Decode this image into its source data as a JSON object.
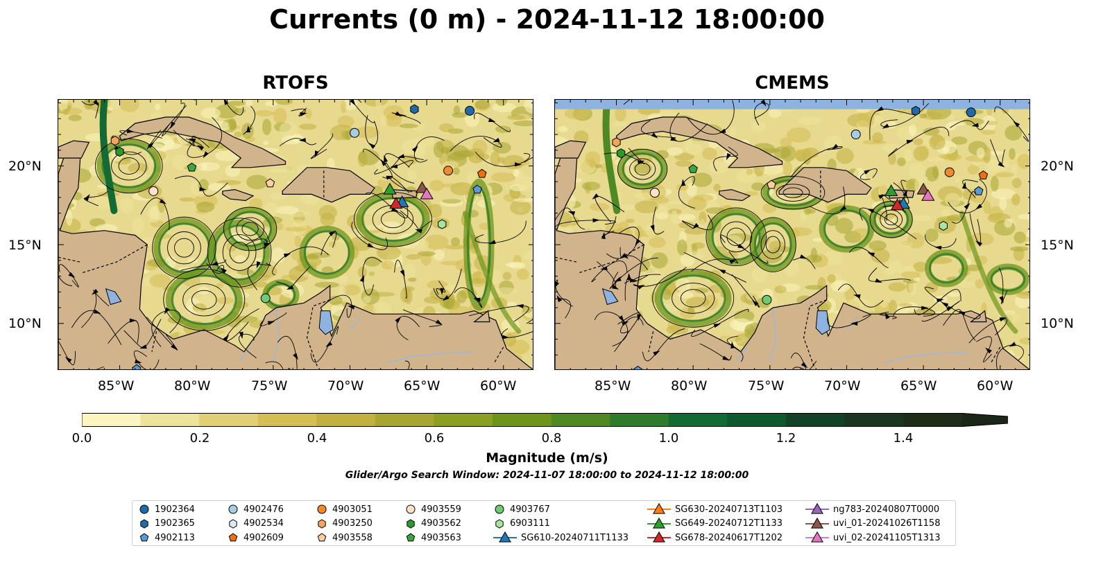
{
  "title": "Currents (0 m) - 2024-11-12 18:00:00",
  "panels": [
    {
      "title": "RTOFS"
    },
    {
      "title": "CMEMS"
    }
  ],
  "axes": {
    "x_ticks": [
      "85°W",
      "80°W",
      "75°W",
      "70°W",
      "65°W",
      "60°W"
    ],
    "y_ticks": [
      "20°N",
      "15°N",
      "10°N"
    ]
  },
  "colorbar": {
    "label": "Magnitude (m/s)",
    "ticks": [
      "0.0",
      "0.2",
      "0.4",
      "0.6",
      "0.8",
      "1.0",
      "1.2",
      "1.4"
    ],
    "colors": [
      "#fbf5c0",
      "#efe29b",
      "#e2cf75",
      "#d5be54",
      "#c2b041",
      "#a9a533",
      "#8ba023",
      "#6d951c",
      "#4f8923",
      "#2f7b2c",
      "#136b33",
      "#0c5a2d",
      "#134326",
      "#1a3620",
      "#1d2d1a",
      "#1b2618"
    ],
    "range": [
      0.0,
      1.5
    ]
  },
  "search_window": "Glider/Argo Search Window: 2024-11-07 18:00:00 to 2024-11-12 18:00:00",
  "legend": {
    "columns": [
      [
        {
          "label": "1902364",
          "marker": "circle",
          "color": "#1f6aa8"
        },
        {
          "label": "1902365",
          "marker": "hexagon",
          "color": "#1f6aa8"
        },
        {
          "label": "4902113",
          "marker": "pentagon",
          "color": "#5b9bd5"
        }
      ],
      [
        {
          "label": "4902476",
          "marker": "circle",
          "color": "#a6cee3"
        },
        {
          "label": "4902534",
          "marker": "hexagon",
          "color": "#d6ecf7"
        },
        {
          "label": "4902609",
          "marker": "pentagon",
          "color": "#f36f0a"
        }
      ],
      [
        {
          "label": "4903051",
          "marker": "circle",
          "color": "#f48a2a"
        },
        {
          "label": "4903250",
          "marker": "hexagon",
          "color": "#f5a55a"
        },
        {
          "label": "4903558",
          "marker": "pentagon",
          "color": "#fbd0a1"
        }
      ],
      [
        {
          "label": "4903559",
          "marker": "circle",
          "color": "#fde4c8"
        },
        {
          "label": "4903562",
          "marker": "hexagon",
          "color": "#2a9a2a"
        },
        {
          "label": "4903563",
          "marker": "pentagon",
          "color": "#3aa83a"
        }
      ],
      [
        {
          "label": "4903767",
          "marker": "circle",
          "color": "#6fcb6f"
        },
        {
          "label": "6903111",
          "marker": "hexagon",
          "color": "#a8e6a0"
        },
        {
          "label": "SG610-20240711T1133",
          "marker": "triangle",
          "color": "#1f77b4"
        }
      ],
      [
        {
          "label": "SG630-20240713T1103",
          "marker": "triangle",
          "color": "#ff7f0e"
        },
        {
          "label": "SG649-20240712T1133",
          "marker": "triangle",
          "color": "#2ca02c"
        },
        {
          "label": "SG678-20240617T1202",
          "marker": "triangle",
          "color": "#d62728"
        }
      ],
      [
        {
          "label": "ng783-20240807T0000",
          "marker": "triangle",
          "color": "#9467bd"
        },
        {
          "label": "uvi_01-20241026T1158",
          "marker": "triangle",
          "color": "#8c564b"
        },
        {
          "label": "uvi_02-20241105T1313",
          "marker": "triangle",
          "color": "#e377c2"
        }
      ]
    ]
  },
  "map_colors": {
    "land": "#d1b48c",
    "ocean_low": "#e7d98e",
    "lake": "#8fb3e0",
    "border": "#000000",
    "strong_current": "#4f8923",
    "cmems_missing": "#8fb3e0"
  },
  "observations": [
    {
      "id": "1902364",
      "lon": -62.2,
      "lat": 23.5
    },
    {
      "id": "1902365",
      "lon": -65.8,
      "lat": 23.6
    },
    {
      "id": "4902113",
      "lon": -83.9,
      "lat": 7.1
    },
    {
      "id": "4902113",
      "lon": -61.7,
      "lat": 18.5
    },
    {
      "id": "4902476",
      "lon": -69.7,
      "lat": 22.1
    },
    {
      "id": "4902609",
      "lon": -61.4,
      "lat": 19.5
    },
    {
      "id": "4903051",
      "lon": -63.6,
      "lat": 19.7
    },
    {
      "id": "4903250",
      "lon": -85.3,
      "lat": 21.6
    },
    {
      "id": "4903558",
      "lon": -75.2,
      "lat": 18.9
    },
    {
      "id": "4903559",
      "lon": -82.8,
      "lat": 18.4
    },
    {
      "id": "4903562",
      "lon": -85.0,
      "lat": 20.9
    },
    {
      "id": "4903563",
      "lon": -80.3,
      "lat": 19.9
    },
    {
      "id": "4903767",
      "lon": -75.5,
      "lat": 11.6
    },
    {
      "id": "6903111",
      "lon": -64.0,
      "lat": 16.3
    },
    {
      "id": "SG610-20240711T1133",
      "lon": -66.6,
      "lat": 17.7
    },
    {
      "id": "SG649-20240712T1133",
      "lon": -67.4,
      "lat": 18.5
    },
    {
      "id": "SG678-20240617T1202",
      "lon": -67.0,
      "lat": 17.6
    },
    {
      "id": "uvi_01-20241026T1158",
      "lon": -65.3,
      "lat": 18.6
    },
    {
      "id": "uvi_02-20241105T1313",
      "lon": -65.0,
      "lat": 18.2
    }
  ]
}
